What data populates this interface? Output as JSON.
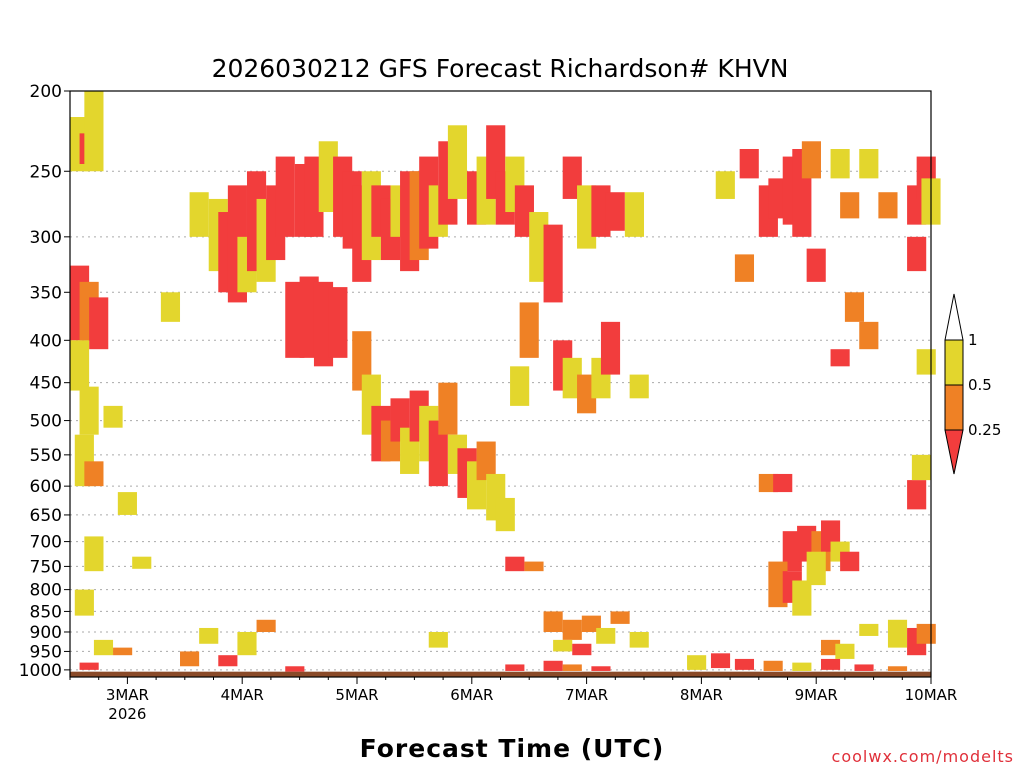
{
  "chart_data": {
    "type": "heatmap",
    "title": "2026030212 GFS Forecast Richardson# KHVN",
    "xlabel": "Forecast Time (UTC)",
    "credit": "coolwx.com/modelts",
    "x_ticks": [
      {
        "label": "3MAR",
        "sub": "2026",
        "hours": 12
      },
      {
        "label": "4MAR",
        "sub": "",
        "hours": 36
      },
      {
        "label": "5MAR",
        "sub": "",
        "hours": 60
      },
      {
        "label": "6MAR",
        "sub": "",
        "hours": 84
      },
      {
        "label": "7MAR",
        "sub": "",
        "hours": 108
      },
      {
        "label": "8MAR",
        "sub": "",
        "hours": 132
      },
      {
        "label": "9MAR",
        "sub": "",
        "hours": 156
      },
      {
        "label": "10MAR",
        "sub": "",
        "hours": 180
      }
    ],
    "x_range_hours": [
      0,
      180
    ],
    "y_ticks": [
      "200",
      "250",
      "300",
      "350",
      "400",
      "450",
      "500",
      "550",
      "600",
      "650",
      "700",
      "750",
      "800",
      "850",
      "900",
      "950",
      "1000"
    ],
    "y_tick_values": [
      200,
      250,
      300,
      350,
      400,
      450,
      500,
      550,
      600,
      650,
      700,
      750,
      800,
      850,
      900,
      950,
      1000
    ],
    "y_range_hPa": [
      200,
      1020
    ],
    "y_axis_inverted": true,
    "colorbar": {
      "labels": [
        "1",
        "0.5",
        "0.25"
      ],
      "bins": [
        {
          "range": "0.5-1",
          "color": "#e3d62d"
        },
        {
          "range": "0.25-0.5",
          "color": "#ef8125"
        },
        {
          "range": "<0.25",
          "color": "#f23d3d"
        }
      ],
      "top_extension_color": "#ffffff",
      "bottom_extension_color": "#f23d3d"
    },
    "colors": {
      "low": "#f23d3d",
      "mid": "#ef8125",
      "high": "#e3d62d",
      "ground": "#8a4a28"
    },
    "cells": [
      {
        "t": 1,
        "p1": 215,
        "p2": 250,
        "c": "high"
      },
      {
        "t": 3,
        "p1": 225,
        "p2": 245,
        "c": "low"
      },
      {
        "t": 4,
        "p1": 200,
        "p2": 250,
        "c": "high"
      },
      {
        "t": 1,
        "p1": 325,
        "p2": 400,
        "c": "low"
      },
      {
        "t": 3,
        "p1": 340,
        "p2": 400,
        "c": "mid"
      },
      {
        "t": 5,
        "p1": 355,
        "p2": 410,
        "c": "low"
      },
      {
        "t": 1,
        "p1": 400,
        "p2": 460,
        "c": "high"
      },
      {
        "t": 3,
        "p1": 455,
        "p2": 520,
        "c": "high"
      },
      {
        "t": 2,
        "p1": 520,
        "p2": 600,
        "c": "high"
      },
      {
        "t": 4,
        "p1": 560,
        "p2": 600,
        "c": "mid"
      },
      {
        "t": 8,
        "p1": 480,
        "p2": 510,
        "c": "high"
      },
      {
        "t": 11,
        "p1": 610,
        "p2": 650,
        "c": "high"
      },
      {
        "t": 4,
        "p1": 690,
        "p2": 760,
        "c": "high"
      },
      {
        "t": 14,
        "p1": 730,
        "p2": 755,
        "c": "high"
      },
      {
        "t": 2,
        "p1": 800,
        "p2": 860,
        "c": "high"
      },
      {
        "t": 20,
        "p1": 350,
        "p2": 380,
        "c": "high"
      },
      {
        "t": 26,
        "p1": 265,
        "p2": 300,
        "c": "high"
      },
      {
        "t": 30,
        "p1": 270,
        "p2": 330,
        "c": "high"
      },
      {
        "t": 32,
        "p1": 280,
        "p2": 350,
        "c": "low"
      },
      {
        "t": 34,
        "p1": 260,
        "p2": 360,
        "c": "low"
      },
      {
        "t": 36,
        "p1": 300,
        "p2": 350,
        "c": "high"
      },
      {
        "t": 38,
        "p1": 250,
        "p2": 330,
        "c": "low"
      },
      {
        "t": 40,
        "p1": 270,
        "p2": 340,
        "c": "high"
      },
      {
        "t": 42,
        "p1": 260,
        "p2": 320,
        "c": "low"
      },
      {
        "t": 44,
        "p1": 240,
        "p2": 300,
        "c": "low"
      },
      {
        "t": 46,
        "p1": 340,
        "p2": 420,
        "c": "low"
      },
      {
        "t": 49,
        "p1": 335,
        "p2": 420,
        "c": "low"
      },
      {
        "t": 52,
        "p1": 340,
        "p2": 430,
        "c": "low"
      },
      {
        "t": 55,
        "p1": 345,
        "p2": 420,
        "c": "low"
      },
      {
        "t": 48,
        "p1": 245,
        "p2": 300,
        "c": "low"
      },
      {
        "t": 50,
        "p1": 240,
        "p2": 300,
        "c": "low"
      },
      {
        "t": 53,
        "p1": 230,
        "p2": 280,
        "c": "high"
      },
      {
        "t": 56,
        "p1": 240,
        "p2": 300,
        "c": "low"
      },
      {
        "t": 58,
        "p1": 250,
        "p2": 310,
        "c": "low"
      },
      {
        "t": 60,
        "p1": 260,
        "p2": 340,
        "c": "low"
      },
      {
        "t": 62,
        "p1": 250,
        "p2": 320,
        "c": "high"
      },
      {
        "t": 64,
        "p1": 260,
        "p2": 300,
        "c": "low"
      },
      {
        "t": 66,
        "p1": 270,
        "p2": 320,
        "c": "low"
      },
      {
        "t": 68,
        "p1": 260,
        "p2": 300,
        "c": "high"
      },
      {
        "t": 70,
        "p1": 250,
        "p2": 330,
        "c": "low"
      },
      {
        "t": 72,
        "p1": 250,
        "p2": 320,
        "c": "mid"
      },
      {
        "t": 74,
        "p1": 240,
        "p2": 310,
        "c": "low"
      },
      {
        "t": 76,
        "p1": 260,
        "p2": 300,
        "c": "high"
      },
      {
        "t": 78,
        "p1": 230,
        "p2": 290,
        "c": "low"
      },
      {
        "t": 80,
        "p1": 220,
        "p2": 270,
        "c": "high"
      },
      {
        "t": 84,
        "p1": 250,
        "p2": 290,
        "c": "low"
      },
      {
        "t": 86,
        "p1": 240,
        "p2": 290,
        "c": "high"
      },
      {
        "t": 88,
        "p1": 220,
        "p2": 270,
        "c": "low"
      },
      {
        "t": 90,
        "p1": 250,
        "p2": 290,
        "c": "low"
      },
      {
        "t": 92,
        "p1": 240,
        "p2": 280,
        "c": "high"
      },
      {
        "t": 94,
        "p1": 260,
        "p2": 300,
        "c": "low"
      },
      {
        "t": 97,
        "p1": 280,
        "p2": 340,
        "c": "high"
      },
      {
        "t": 100,
        "p1": 290,
        "p2": 360,
        "c": "low"
      },
      {
        "t": 104,
        "p1": 240,
        "p2": 270,
        "c": "low"
      },
      {
        "t": 107,
        "p1": 260,
        "p2": 310,
        "c": "high"
      },
      {
        "t": 110,
        "p1": 260,
        "p2": 300,
        "c": "low"
      },
      {
        "t": 113,
        "p1": 265,
        "p2": 295,
        "c": "low"
      },
      {
        "t": 117,
        "p1": 265,
        "p2": 300,
        "c": "high"
      },
      {
        "t": 60,
        "p1": 390,
        "p2": 460,
        "c": "mid"
      },
      {
        "t": 62,
        "p1": 440,
        "p2": 520,
        "c": "high"
      },
      {
        "t": 64,
        "p1": 480,
        "p2": 560,
        "c": "low"
      },
      {
        "t": 66,
        "p1": 500,
        "p2": 560,
        "c": "mid"
      },
      {
        "t": 68,
        "p1": 470,
        "p2": 530,
        "c": "low"
      },
      {
        "t": 70,
        "p1": 510,
        "p2": 580,
        "c": "high"
      },
      {
        "t": 72,
        "p1": 460,
        "p2": 530,
        "c": "low"
      },
      {
        "t": 74,
        "p1": 480,
        "p2": 560,
        "c": "high"
      },
      {
        "t": 76,
        "p1": 500,
        "p2": 600,
        "c": "low"
      },
      {
        "t": 78,
        "p1": 450,
        "p2": 520,
        "c": "mid"
      },
      {
        "t": 80,
        "p1": 520,
        "p2": 580,
        "c": "high"
      },
      {
        "t": 82,
        "p1": 540,
        "p2": 620,
        "c": "low"
      },
      {
        "t": 84,
        "p1": 560,
        "p2": 640,
        "c": "high"
      },
      {
        "t": 86,
        "p1": 530,
        "p2": 590,
        "c": "mid"
      },
      {
        "t": 88,
        "p1": 580,
        "p2": 660,
        "c": "high"
      },
      {
        "t": 90,
        "p1": 620,
        "p2": 680,
        "c": "high"
      },
      {
        "t": 93,
        "p1": 430,
        "p2": 480,
        "c": "high"
      },
      {
        "t": 95,
        "p1": 360,
        "p2": 420,
        "c": "mid"
      },
      {
        "t": 102,
        "p1": 400,
        "p2": 460,
        "c": "low"
      },
      {
        "t": 104,
        "p1": 420,
        "p2": 470,
        "c": "high"
      },
      {
        "t": 107,
        "p1": 440,
        "p2": 490,
        "c": "mid"
      },
      {
        "t": 110,
        "p1": 420,
        "p2": 470,
        "c": "high"
      },
      {
        "t": 112,
        "p1": 380,
        "p2": 440,
        "c": "low"
      },
      {
        "t": 118,
        "p1": 440,
        "p2": 470,
        "c": "high"
      },
      {
        "t": 136,
        "p1": 250,
        "p2": 270,
        "c": "high"
      },
      {
        "t": 141,
        "p1": 235,
        "p2": 255,
        "c": "low"
      },
      {
        "t": 145,
        "p1": 260,
        "p2": 300,
        "c": "low"
      },
      {
        "t": 147,
        "p1": 255,
        "p2": 285,
        "c": "low"
      },
      {
        "t": 150,
        "p1": 240,
        "p2": 290,
        "c": "low"
      },
      {
        "t": 152,
        "p1": 235,
        "p2": 300,
        "c": "low"
      },
      {
        "t": 154,
        "p1": 230,
        "p2": 255,
        "c": "mid"
      },
      {
        "t": 160,
        "p1": 235,
        "p2": 255,
        "c": "high"
      },
      {
        "t": 166,
        "p1": 235,
        "p2": 255,
        "c": "high"
      },
      {
        "t": 162,
        "p1": 265,
        "p2": 285,
        "c": "mid"
      },
      {
        "t": 170,
        "p1": 265,
        "p2": 285,
        "c": "mid"
      },
      {
        "t": 176,
        "p1": 260,
        "p2": 290,
        "c": "low"
      },
      {
        "t": 178,
        "p1": 240,
        "p2": 270,
        "c": "low"
      },
      {
        "t": 179,
        "p1": 255,
        "p2": 290,
        "c": "high"
      },
      {
        "t": 176,
        "p1": 300,
        "p2": 330,
        "c": "low"
      },
      {
        "t": 140,
        "p1": 315,
        "p2": 340,
        "c": "mid"
      },
      {
        "t": 155,
        "p1": 310,
        "p2": 340,
        "c": "low"
      },
      {
        "t": 163,
        "p1": 350,
        "p2": 380,
        "c": "mid"
      },
      {
        "t": 166,
        "p1": 380,
        "p2": 410,
        "c": "mid"
      },
      {
        "t": 160,
        "p1": 410,
        "p2": 430,
        "c": "low"
      },
      {
        "t": 178,
        "p1": 410,
        "p2": 440,
        "c": "high"
      },
      {
        "t": 176,
        "p1": 590,
        "p2": 640,
        "c": "low"
      },
      {
        "t": 177,
        "p1": 550,
        "p2": 590,
        "c": "high"
      },
      {
        "t": 145,
        "p1": 580,
        "p2": 610,
        "c": "mid"
      },
      {
        "t": 148,
        "p1": 580,
        "p2": 610,
        "c": "low"
      },
      {
        "t": 150,
        "p1": 680,
        "p2": 760,
        "c": "low"
      },
      {
        "t": 153,
        "p1": 670,
        "p2": 740,
        "c": "low"
      },
      {
        "t": 156,
        "p1": 680,
        "p2": 760,
        "c": "mid"
      },
      {
        "t": 158,
        "p1": 660,
        "p2": 720,
        "c": "low"
      },
      {
        "t": 147,
        "p1": 740,
        "p2": 840,
        "c": "mid"
      },
      {
        "t": 150,
        "p1": 760,
        "p2": 830,
        "c": "low"
      },
      {
        "t": 152,
        "p1": 780,
        "p2": 860,
        "c": "high"
      },
      {
        "t": 155,
        "p1": 720,
        "p2": 790,
        "c": "high"
      },
      {
        "t": 160,
        "p1": 700,
        "p2": 740,
        "c": "high"
      },
      {
        "t": 162,
        "p1": 720,
        "p2": 760,
        "c": "low"
      },
      {
        "t": 166,
        "p1": 880,
        "p2": 910,
        "c": "high"
      },
      {
        "t": 172,
        "p1": 870,
        "p2": 940,
        "c": "high"
      },
      {
        "t": 176,
        "p1": 890,
        "p2": 960,
        "c": "low"
      },
      {
        "t": 178,
        "p1": 880,
        "p2": 930,
        "c": "mid"
      },
      {
        "t": 158,
        "p1": 920,
        "p2": 960,
        "c": "mid"
      },
      {
        "t": 161,
        "p1": 930,
        "p2": 970,
        "c": "high"
      },
      {
        "t": 92,
        "p1": 730,
        "p2": 760,
        "c": "low"
      },
      {
        "t": 96,
        "p1": 740,
        "p2": 760,
        "c": "mid"
      },
      {
        "t": 100,
        "p1": 850,
        "p2": 900,
        "c": "mid"
      },
      {
        "t": 104,
        "p1": 870,
        "p2": 920,
        "c": "mid"
      },
      {
        "t": 108,
        "p1": 860,
        "p2": 900,
        "c": "mid"
      },
      {
        "t": 111,
        "p1": 890,
        "p2": 930,
        "c": "high"
      },
      {
        "t": 114,
        "p1": 850,
        "p2": 880,
        "c": "mid"
      },
      {
        "t": 118,
        "p1": 900,
        "p2": 940,
        "c": "high"
      },
      {
        "t": 102,
        "p1": 920,
        "p2": 950,
        "c": "high"
      },
      {
        "t": 106,
        "p1": 930,
        "p2": 960,
        "c": "low"
      },
      {
        "t": 40,
        "p1": 870,
        "p2": 900,
        "c": "mid"
      },
      {
        "t": 36,
        "p1": 900,
        "p2": 960,
        "c": "high"
      },
      {
        "t": 76,
        "p1": 900,
        "p2": 940,
        "c": "high"
      },
      {
        "t": 28,
        "p1": 890,
        "p2": 930,
        "c": "high"
      },
      {
        "t": 24,
        "p1": 950,
        "p2": 990,
        "c": "mid"
      },
      {
        "t": 6,
        "p1": 920,
        "p2": 960,
        "c": "high"
      },
      {
        "t": 10,
        "p1": 940,
        "p2": 960,
        "c": "mid"
      },
      {
        "t": 3,
        "p1": 980,
        "p2": 1000,
        "c": "low"
      },
      {
        "t": 32,
        "p1": 960,
        "p2": 990,
        "c": "low"
      },
      {
        "t": 46,
        "p1": 990,
        "p2": 1005,
        "c": "low"
      },
      {
        "t": 92,
        "p1": 985,
        "p2": 1003,
        "c": "low"
      },
      {
        "t": 100,
        "p1": 975,
        "p2": 1003,
        "c": "low"
      },
      {
        "t": 104,
        "p1": 985,
        "p2": 1003,
        "c": "mid"
      },
      {
        "t": 110,
        "p1": 990,
        "p2": 1003,
        "c": "low"
      },
      {
        "t": 130,
        "p1": 960,
        "p2": 1000,
        "c": "high"
      },
      {
        "t": 135,
        "p1": 955,
        "p2": 995,
        "c": "low"
      },
      {
        "t": 140,
        "p1": 970,
        "p2": 1000,
        "c": "low"
      },
      {
        "t": 146,
        "p1": 975,
        "p2": 1003,
        "c": "mid"
      },
      {
        "t": 152,
        "p1": 980,
        "p2": 1003,
        "c": "high"
      },
      {
        "t": 158,
        "p1": 970,
        "p2": 1000,
        "c": "low"
      },
      {
        "t": 165,
        "p1": 985,
        "p2": 1003,
        "c": "low"
      },
      {
        "t": 172,
        "p1": 990,
        "p2": 1003,
        "c": "mid"
      }
    ]
  }
}
